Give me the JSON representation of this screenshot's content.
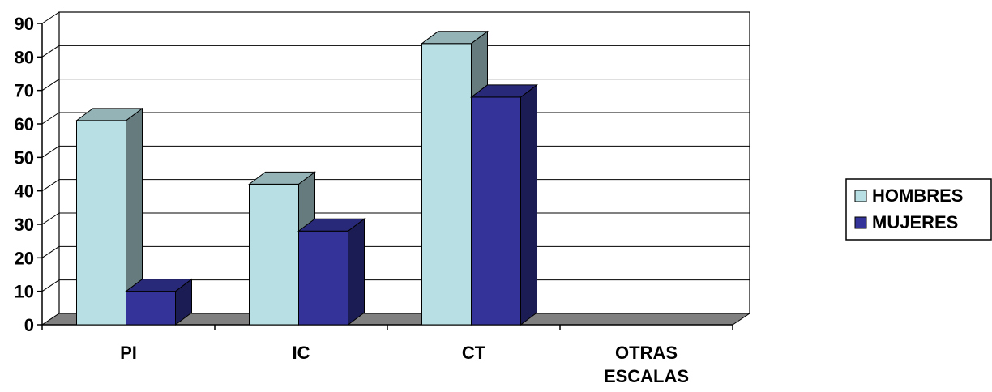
{
  "chart_data": {
    "type": "bar",
    "categories": [
      "PI",
      "IC",
      "CT",
      "OTRAS ESCALAS"
    ],
    "series": [
      {
        "name": "HOMBRES",
        "values": [
          61,
          42,
          84,
          0
        ],
        "color": "#B8E0E4"
      },
      {
        "name": "MUJERES",
        "values": [
          10,
          28,
          68,
          0
        ],
        "color": "#333399"
      }
    ],
    "ylim": [
      0,
      90
    ],
    "yticks": [
      "0",
      "10",
      "20",
      "30",
      "40",
      "50",
      "60",
      "70",
      "80",
      "90"
    ],
    "grid": true,
    "legend_position": "right",
    "style": "3d-clustered-column",
    "floor_color": "#808080"
  }
}
